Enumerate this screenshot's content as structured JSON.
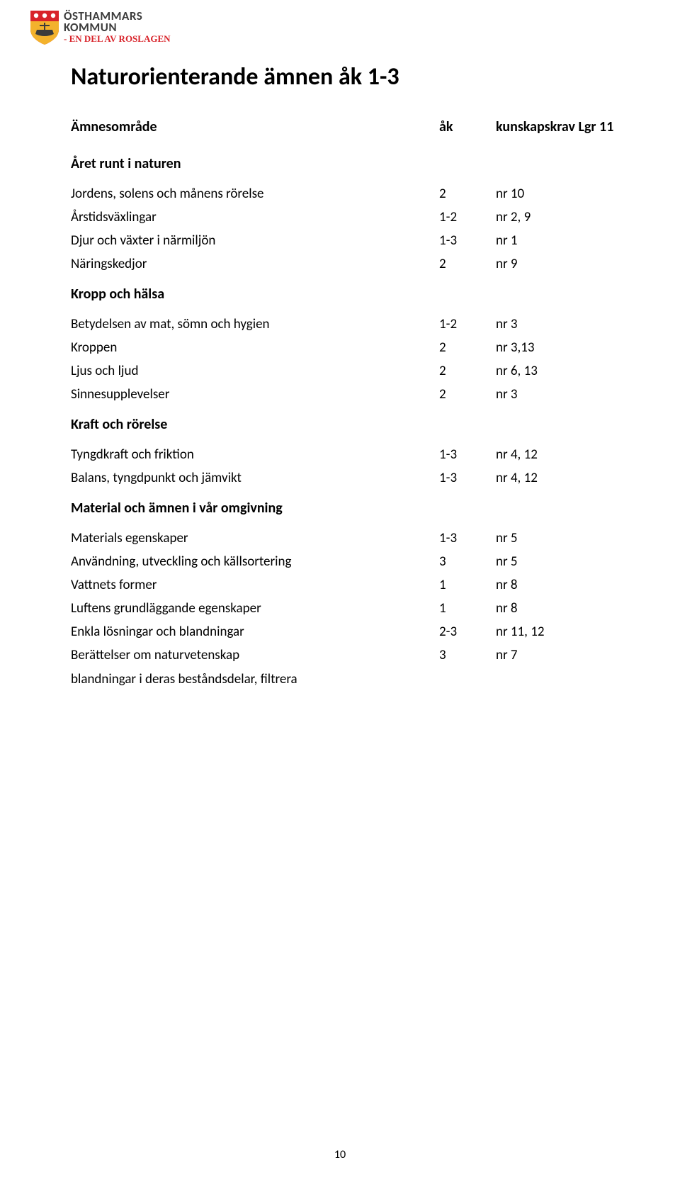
{
  "logo": {
    "line1": "ÖSTHAMMARS",
    "line2": "KOMMUN",
    "tagline": "- EN DEL AV ROSLAGEN",
    "shield_top_color": "#d8232a",
    "shield_bottom_color": "#f3b22c",
    "shield_circle_color": "#ffffff",
    "ship_color": "#3b3b3b"
  },
  "title": "Naturorienterande ämnen åk 1-3",
  "headers": {
    "a": "Ämnesområde",
    "b": "åk",
    "c": "kunskapskrav Lgr 11"
  },
  "sections": [
    {
      "heading": "Året runt i naturen",
      "rows": [
        {
          "a": "Jordens, solens och månens rörelse",
          "b": "2",
          "c": "nr 10"
        },
        {
          "a": "Årstidsväxlingar",
          "b": "1-2",
          "c": "nr 2, 9"
        },
        {
          "a": "Djur och växter i närmiljön",
          "b": "1-3",
          "c": "nr 1"
        },
        {
          "a": "Näringskedjor",
          "b": "2",
          "c": "nr 9"
        }
      ]
    },
    {
      "heading": "Kropp och hälsa",
      "rows": [
        {
          "a": "Betydelsen av mat, sömn och hygien",
          "b": "1-2",
          "c": "nr 3"
        },
        {
          "a": "Kroppen",
          "b": "2",
          "c": "nr 3,13"
        },
        {
          "a": "Ljus och ljud",
          "b": "2",
          "c": "nr 6, 13"
        },
        {
          "a": "Sinnesupplevelser",
          "b": "2",
          "c": "nr 3"
        }
      ]
    },
    {
      "heading": "Kraft och rörelse",
      "rows": [
        {
          "a": "Tyngdkraft och friktion",
          "b": "1-3",
          "c": "nr 4, 12"
        },
        {
          "a": "Balans, tyngdpunkt och jämvikt",
          "b": "1-3",
          "c": "nr 4, 12"
        }
      ]
    },
    {
      "heading": "Material och ämnen i vår omgivning",
      "rows": [
        {
          "a": "Materials egenskaper",
          "b": "1-3",
          "c": "nr 5"
        },
        {
          "a": "Användning, utveckling och källsortering",
          "b": "3",
          "c": "nr 5"
        },
        {
          "a": "Vattnets former",
          "b": "1",
          "c": "nr 8"
        },
        {
          "a": "Luftens grundläggande egenskaper",
          "b": "1",
          "c": "nr 8"
        },
        {
          "a": "Enkla lösningar och blandningar",
          "b": "2-3",
          "c": "nr 11, 12"
        },
        {
          "a": "Berättelser om naturvetenskap",
          "b": "3",
          "c": "nr 7"
        }
      ]
    }
  ],
  "footer_note": "blandningar i deras beståndsdelar, filtrera",
  "page_number": "10"
}
